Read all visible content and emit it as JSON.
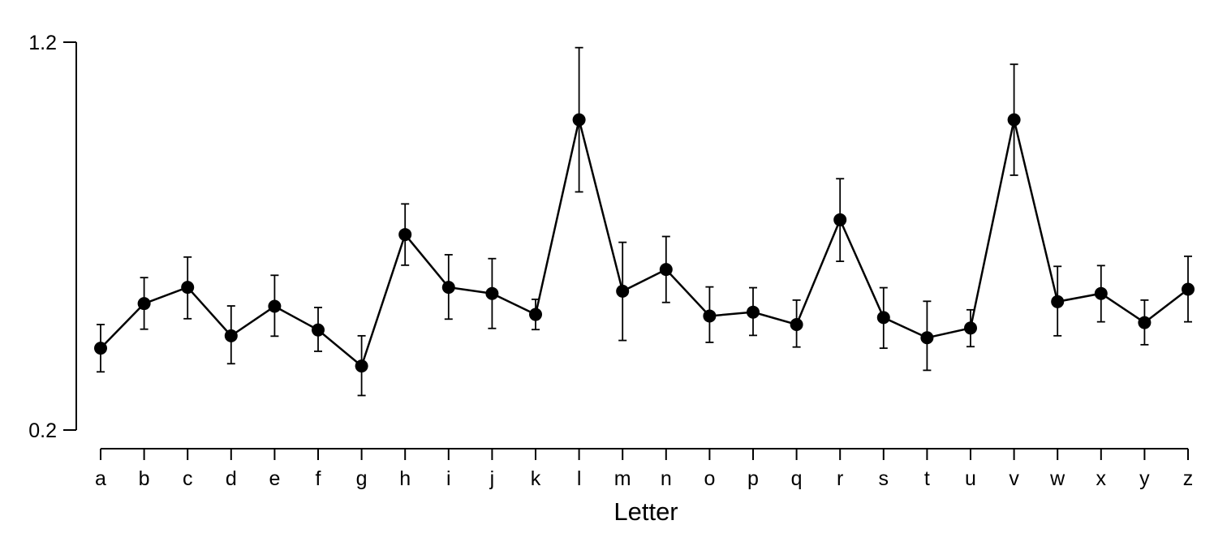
{
  "chart_data": {
    "type": "line",
    "title": "",
    "xlabel": "Letter",
    "ylabel": "",
    "categories": [
      "a",
      "b",
      "c",
      "d",
      "e",
      "f",
      "g",
      "h",
      "i",
      "j",
      "k",
      "l",
      "m",
      "n",
      "o",
      "p",
      "q",
      "r",
      "s",
      "t",
      "u",
      "v",
      "w",
      "x",
      "y",
      "z"
    ],
    "series": [
      {
        "values": [
          0.411,
          0.526,
          0.568,
          0.443,
          0.519,
          0.458,
          0.365,
          0.704,
          0.568,
          0.552,
          0.498,
          1.0,
          0.558,
          0.614,
          0.494,
          0.504,
          0.472,
          0.742,
          0.49,
          0.438,
          0.463,
          1.0,
          0.531,
          0.552,
          0.477,
          0.563
        ],
        "err_low": [
          0.35,
          0.46,
          0.487,
          0.371,
          0.442,
          0.403,
          0.289,
          0.625,
          0.486,
          0.462,
          0.459,
          0.814,
          0.431,
          0.529,
          0.426,
          0.444,
          0.414,
          0.635,
          0.411,
          0.354,
          0.415,
          0.857,
          0.443,
          0.479,
          0.42,
          0.479
        ],
        "err_high": [
          0.472,
          0.593,
          0.646,
          0.52,
          0.599,
          0.516,
          0.443,
          0.783,
          0.652,
          0.642,
          0.537,
          1.186,
          0.684,
          0.699,
          0.569,
          0.567,
          0.535,
          0.848,
          0.567,
          0.532,
          0.51,
          1.143,
          0.622,
          0.624,
          0.535,
          0.648
        ]
      }
    ],
    "yticks": [
      "1.2",
      "0.2"
    ],
    "ylim": [
      0.2,
      1.2
    ],
    "grid": false,
    "colors": {
      "line": "#000000",
      "marker": "#000000"
    }
  }
}
